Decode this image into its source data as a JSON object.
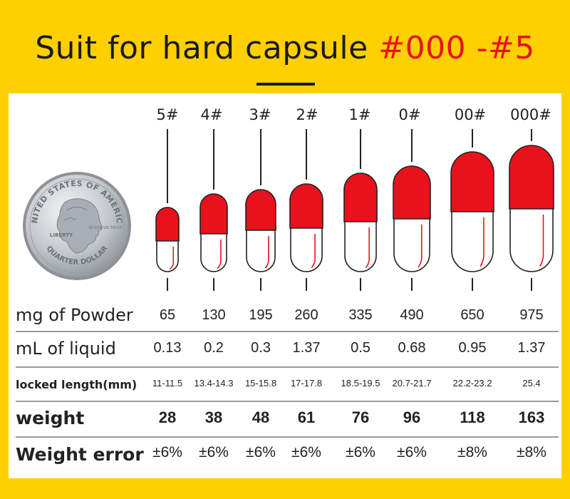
{
  "title": {
    "main": "Suit for hard capsule",
    "range": "#000 -#5"
  },
  "coin": {
    "top_text": "UNITED STATES OF AMERICA",
    "bottom_text": "QUARTER DOLLAR",
    "left_text": "LIBERTY",
    "motto": "IN GOD WE TRUST",
    "color": "#b9bdc2"
  },
  "colors": {
    "background": "#FFD000",
    "capsule_cap": "#E8121C",
    "accent": "#E8121C"
  },
  "sizes": [
    "5#",
    "4#",
    "3#",
    "2#",
    "1#",
    "0#",
    "00#",
    "000#"
  ],
  "rows": [
    {
      "label": "mg of Powder",
      "values": [
        "65",
        "130",
        "195",
        "260",
        "335",
        "490",
        "650",
        "975"
      ]
    },
    {
      "label": "mL of liquid",
      "values": [
        "0.13",
        "0.2",
        "0.3",
        "1.37",
        "0.5",
        "0.68",
        "0.95",
        "1.37"
      ]
    },
    {
      "label": "locked length(mm)",
      "values": [
        "11-11.5",
        "13.4-14.3",
        "15-15.8",
        "17-17.8",
        "18.5-19.5",
        "20.7-21.7",
        "22.2-23.2",
        "25.4"
      ]
    },
    {
      "label": "weight",
      "values": [
        "28",
        "38",
        "48",
        "61",
        "76",
        "96",
        "118",
        "163"
      ]
    },
    {
      "label": "Weight error",
      "values": [
        "±6%",
        "±6%",
        "±6%",
        "±6%",
        "±6%",
        "±6%",
        "±8%",
        "±8%"
      ]
    }
  ]
}
